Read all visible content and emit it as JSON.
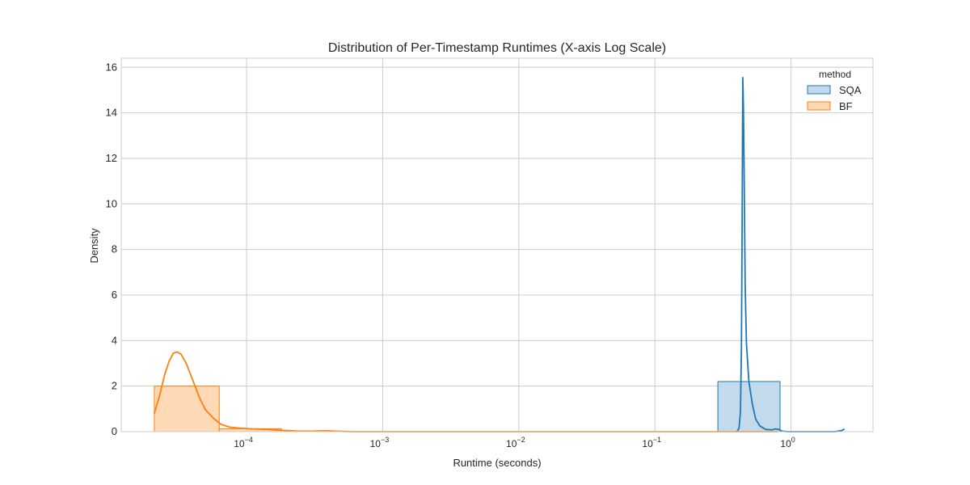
{
  "chart_data": {
    "type": "histogram",
    "title": "Distribution of Per-Timestamp Runtimes (X-axis Log Scale)",
    "xlabel": "Runtime (seconds)",
    "ylabel": "Density",
    "xscale": "log",
    "xlim": [
      1.2e-05,
      4.0
    ],
    "ylim": [
      0,
      16.4
    ],
    "grid": true,
    "x_ticks": [
      {
        "value": 0.0001,
        "base": "10",
        "exp": "−4"
      },
      {
        "value": 0.001,
        "base": "10",
        "exp": "−3"
      },
      {
        "value": 0.01,
        "base": "10",
        "exp": "−2"
      },
      {
        "value": 0.1,
        "base": "10",
        "exp": "−1"
      },
      {
        "value": 1,
        "base": "10",
        "exp": "0"
      }
    ],
    "y_ticks": [
      0,
      2,
      4,
      6,
      8,
      10,
      12,
      14,
      16
    ],
    "legend": {
      "title": "method",
      "position": "top-right",
      "entries": [
        {
          "label": "SQA",
          "color": "#1f77b4",
          "fill": "#c3d9ec"
        },
        {
          "label": "BF",
          "color": "#ff7f0e",
          "fill": "#ffd8b6"
        }
      ]
    },
    "series": [
      {
        "name": "SQA",
        "color": "#1f77b4",
        "fill": "#c3d9ec",
        "bins": [
          {
            "x0": 0.29,
            "x1": 0.83,
            "density": 2.2
          }
        ],
        "kde": [
          [
            0.4,
            0.0
          ],
          [
            0.415,
            0.15
          ],
          [
            0.425,
            0.9
          ],
          [
            0.432,
            3.7
          ],
          [
            0.437,
            9.0
          ],
          [
            0.442,
            15.55
          ],
          [
            0.447,
            14.2
          ],
          [
            0.452,
            11.5
          ],
          [
            0.46,
            6.5
          ],
          [
            0.47,
            3.9
          ],
          [
            0.49,
            2.2
          ],
          [
            0.52,
            1.2
          ],
          [
            0.55,
            0.55
          ],
          [
            0.59,
            0.25
          ],
          [
            0.65,
            0.1
          ],
          [
            0.72,
            0.08
          ],
          [
            0.77,
            0.12
          ],
          [
            0.81,
            0.1
          ],
          [
            0.86,
            0.02
          ],
          [
            0.95,
            0.0
          ],
          [
            1.5,
            0.0
          ],
          [
            2.1,
            0.0
          ],
          [
            2.35,
            0.05
          ],
          [
            2.45,
            0.1
          ]
        ]
      },
      {
        "name": "BF",
        "color": "#ff7f0e",
        "fill": "#ffd8b6",
        "bins": [
          {
            "x0": 2.1e-05,
            "x1": 6.3e-05,
            "density": 2.0
          },
          {
            "x0": 6.3e-05,
            "x1": 0.00018,
            "density": 0.13
          }
        ],
        "kde": [
          [
            2.1e-05,
            0.8
          ],
          [
            2.3e-05,
            1.6
          ],
          [
            2.5e-05,
            2.5
          ],
          [
            2.7e-05,
            3.1
          ],
          [
            2.9e-05,
            3.45
          ],
          [
            3.1e-05,
            3.5
          ],
          [
            3.3e-05,
            3.4
          ],
          [
            3.6e-05,
            3.0
          ],
          [
            4e-05,
            2.3
          ],
          [
            4.5e-05,
            1.5
          ],
          [
            5e-05,
            0.95
          ],
          [
            5.8e-05,
            0.55
          ],
          [
            6.5e-05,
            0.32
          ],
          [
            7.5e-05,
            0.2
          ],
          [
            9e-05,
            0.15
          ],
          [
            0.00011,
            0.12
          ],
          [
            0.00014,
            0.1
          ],
          [
            0.00018,
            0.06
          ],
          [
            0.00023,
            0.03
          ],
          [
            0.0003,
            0.02
          ],
          [
            0.00038,
            0.04
          ],
          [
            0.00045,
            0.02
          ],
          [
            0.0006,
            0.0
          ],
          [
            0.001,
            0.0
          ],
          [
            0.01,
            0.0
          ],
          [
            0.1,
            0.0
          ],
          [
            0.29,
            0.0
          ],
          [
            0.5,
            0.0
          ],
          [
            0.8,
            0.0
          ]
        ]
      }
    ]
  }
}
